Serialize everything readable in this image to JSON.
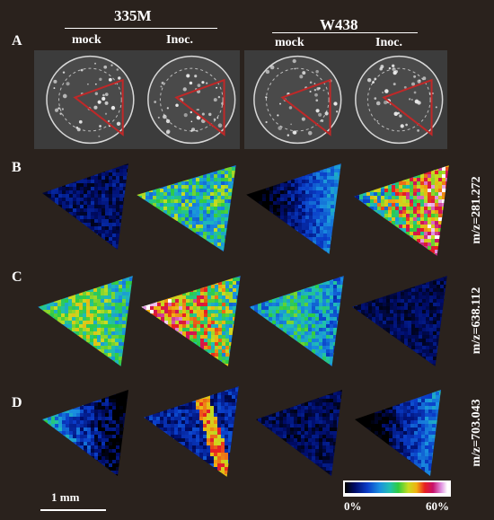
{
  "groups": {
    "left_title": "335M",
    "right_title": "W438"
  },
  "columns": [
    "mock",
    "Inoc.",
    "mock",
    "Inoc."
  ],
  "rows": {
    "a": "A",
    "b": "B",
    "c": "C",
    "d": "D"
  },
  "mz_labels": {
    "b": "m/z=281.272",
    "c": "m/z=638.112",
    "d": "m/z=703.043"
  },
  "scale_bar": "1 mm",
  "colorbar": {
    "min_label": "0%",
    "max_label": "60%"
  },
  "colors": {
    "background": "#2a221d",
    "highlight_outline": "#c02828"
  },
  "intensity_maps": {
    "b": [
      {
        "mean": 0.1,
        "spread": 0.08,
        "hot_edge": "none"
      },
      {
        "mean": 0.45,
        "spread": 0.18,
        "hot_edge": "none"
      },
      {
        "mean": 0.14,
        "spread": 0.08,
        "hot_edge": "right"
      },
      {
        "mean": 0.62,
        "spread": 0.25,
        "hot_edge": "right"
      }
    ],
    "c": [
      {
        "mean": 0.42,
        "spread": 0.14,
        "hot_edge": "center"
      },
      {
        "mean": 0.68,
        "spread": 0.22,
        "hot_edge": "left"
      },
      {
        "mean": 0.3,
        "spread": 0.14,
        "hot_edge": "center"
      },
      {
        "mean": 0.08,
        "spread": 0.06,
        "hot_edge": "none"
      }
    ],
    "d": [
      {
        "mean": 0.18,
        "spread": 0.12,
        "hot_edge": "left"
      },
      {
        "mean": 0.16,
        "spread": 0.1,
        "hot_edge": "arc"
      },
      {
        "mean": 0.08,
        "spread": 0.07,
        "hot_edge": "none"
      },
      {
        "mean": 0.12,
        "spread": 0.09,
        "hot_edge": "right"
      }
    ]
  }
}
